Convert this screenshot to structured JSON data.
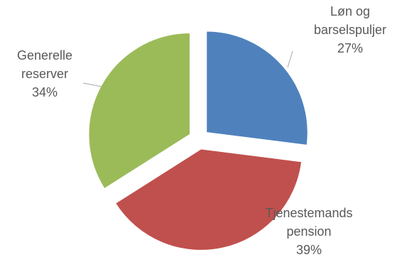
{
  "chart_data": {
    "type": "pie",
    "exploded": true,
    "slices": [
      {
        "label_lines": [
          "Løn og",
          "barselspuljer"
        ],
        "percent_label": "27%",
        "value": 27,
        "color": "#4F81BD"
      },
      {
        "label_lines": [
          "Tjenestemands",
          "pension"
        ],
        "percent_label": "39%",
        "value": 39,
        "color": "#C0504D"
      },
      {
        "label_lines": [
          "Generelle",
          "reserver"
        ],
        "percent_label": "34%",
        "value": 34,
        "color": "#9BBB59"
      }
    ]
  }
}
